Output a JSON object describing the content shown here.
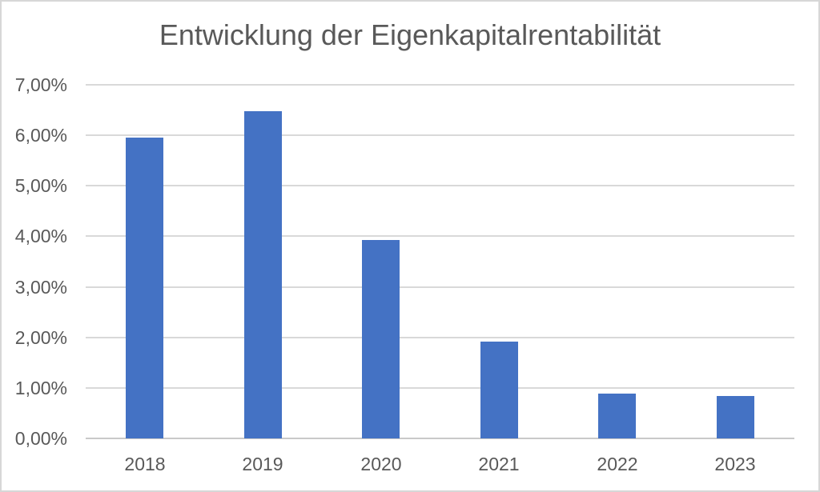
{
  "chart_data": {
    "type": "bar",
    "title": "Entwicklung der Eigenkapitalrentabilität",
    "categories": [
      "2018",
      "2019",
      "2020",
      "2021",
      "2022",
      "2023"
    ],
    "values": [
      5.95,
      6.47,
      3.93,
      1.92,
      0.89,
      0.84
    ],
    "value_unit": "%",
    "y_ticks": [
      "7,00%",
      "6,00%",
      "5,00%",
      "4,00%",
      "3,00%",
      "2,00%",
      "1,00%",
      "0,00%"
    ],
    "ylim": [
      0,
      7
    ],
    "xlabel": "",
    "ylabel": "",
    "grid": "horizontal",
    "legend": "none",
    "colors": {
      "bar": "#4472c4",
      "text": "#595959",
      "gridline": "#d9d9d9",
      "axis_line": "#c9c9c9",
      "background": "#ffffff",
      "frame_border": "#d7d7d7"
    }
  }
}
